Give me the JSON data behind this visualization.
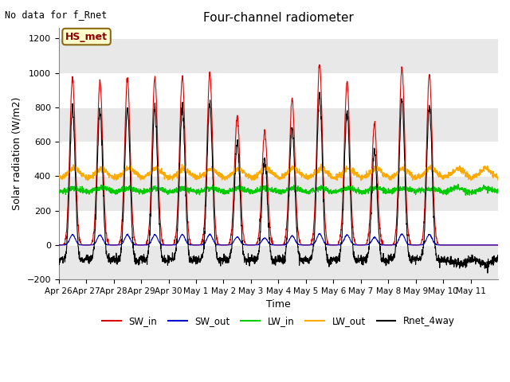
{
  "title": "Four-channel radiometer",
  "top_left_text": "No data for f_Rnet",
  "annotation_box": "HS_met",
  "ylabel": "Solar radiation (W/m2)",
  "xlabel": "Time",
  "ylim": [
    -200,
    1260
  ],
  "yticks": [
    -200,
    0,
    200,
    400,
    600,
    800,
    1000,
    1200
  ],
  "xticklabels": [
    "Apr 26",
    "Apr 27",
    "Apr 28",
    "Apr 29",
    "Apr 30",
    "May 1",
    "May 2",
    "May 3",
    "May 4",
    "May 5",
    "May 6",
    "May 7",
    "May 8",
    "May 9",
    "May 10",
    "May 11"
  ],
  "bg_color": "#ffffff",
  "plot_bg_color": "#ffffff",
  "grid_band_color": "#e8e8e8",
  "colors": {
    "sw_in": "#dd0000",
    "sw_out": "#0000cc",
    "lw_in": "#00cc00",
    "lw_out": "#ffaa00",
    "rnet": "#000000"
  },
  "n_days": 16,
  "sw_in_peaks": [
    970,
    950,
    970,
    970,
    980,
    1000,
    750,
    660,
    850,
    1050,
    950,
    700,
    1030,
    990,
    0,
    0
  ],
  "lw_in_base": 305,
  "lw_out_base": 390,
  "lw_in_range": [
    270,
    370
  ],
  "lw_out_range": [
    350,
    470
  ]
}
